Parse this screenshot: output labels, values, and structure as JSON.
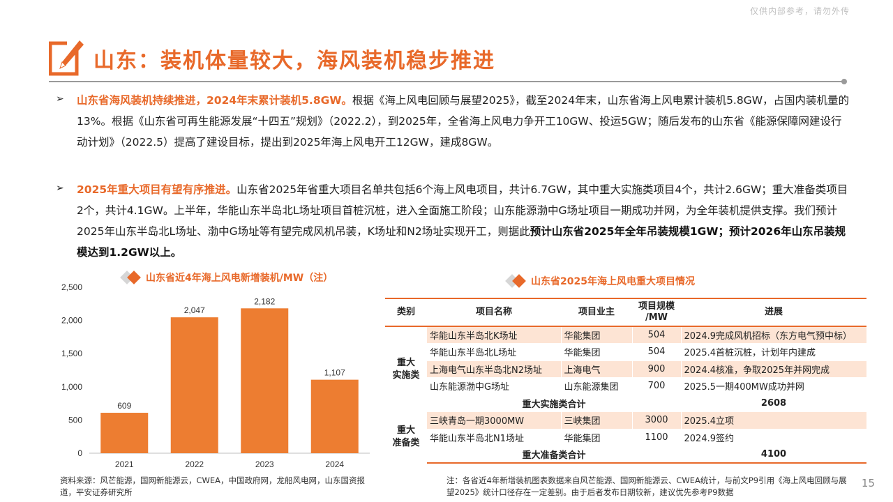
{
  "watermark": "仅供内部参考，请勿外传",
  "title": "山东：装机体量较大，海风装机稳步推进",
  "para1": {
    "lead": "山东省海风装机持续推进，2024年末累计装机5.8GW。",
    "body": "根据《海上风电回顾与展望2025》，截至2024年末，山东省海上风电累计装机5.8GW，占国内装机量的13%。根据《山东省可再生能源发展“十四五”规划》（2022.2），到2025年，全省海上风电力争开工10GW、投运5GW；随后发布的山东省《能源保障网建设行动计划》（2022.5）提高了建设目标，提出到2025年海上风电开工12GW，建成8GW。"
  },
  "para2": {
    "lead": "2025年重大项目有望有序推进。",
    "body": "山东省2025年省重大项目名单共包括6个海上风电项目，共计6.7GW，其中重大实施类项目4个，共计2.6GW；重大准备类项目2个，共计4.1GW。上半年，华能山东半岛北L场址项目首桩沉桩，进入全面施工阶段；山东能源渤中G场址项目一期成功并网，为全年装机提供支撑。我们预计2025年山东半岛北L场址、渤中G场址等有望完成风机吊装，K场址和N2场址实现开工，则据此",
    "tail": "预计山东省2025年全年吊装规模1GW；预计2026年山东吊装规模达到1.2GW以上。"
  },
  "chart_title": "山东省近4年海上风电新增装机/MW（注）",
  "chart_data": {
    "type": "bar",
    "categories": [
      "2021",
      "2022",
      "2023",
      "2024"
    ],
    "values": [
      609,
      2047,
      2182,
      1107
    ],
    "value_labels": [
      "609",
      "2,047",
      "2,182",
      "1,107"
    ],
    "ylim": [
      0,
      2500
    ],
    "yticks": [
      "0",
      "500",
      "1,000",
      "1,500",
      "2,000",
      "2,500"
    ],
    "grid": false,
    "color": "#ED7D31"
  },
  "chart_source": "资料来源：风芒能源，国网新能源云，CWEA，中国政府网，龙船风电网，山东国资报道，平安证券研究所",
  "table_title": "山东省2025年海上风电重大项目情况",
  "table": {
    "headers": [
      "类别",
      "项目名称",
      "项目业主",
      "项目规模/MW",
      "进展"
    ],
    "header_scale_1": "项目规模",
    "header_scale_2": "/MW",
    "group1": {
      "cat_1": "重大",
      "cat_2": "实施类",
      "rows": [
        {
          "name": "华能山东半岛北K场址",
          "owner": "华能集团",
          "scale": "504",
          "progress": "2024.9完成风机招标（东方电气预中标）"
        },
        {
          "name": "华能山东半岛北L场址",
          "owner": "华能集团",
          "scale": "504",
          "progress": "2025.4首桩沉桩，计划年内建成"
        },
        {
          "name": "上海电气山东半岛北N2场址",
          "owner": "上海电气",
          "scale": "900",
          "progress": "2024.4核准，争取2025年并网完成"
        },
        {
          "name": "山东能源渤中G场址",
          "owner": "山东能源集团",
          "scale": "700",
          "progress": "2025.5一期400MW成功并网"
        }
      ],
      "sum_label": "重大实施类合计",
      "sum_value": "2608"
    },
    "group2": {
      "cat_1": "重大",
      "cat_2": "准备类",
      "rows": [
        {
          "name": "三峡青岛一期3000MW",
          "owner": "三峡集团",
          "scale": "3000",
          "progress": "2025.4立项"
        },
        {
          "name": "华能山东半岛北N1场址",
          "owner": "华能集团",
          "scale": "1100",
          "progress": "2024.9签约"
        }
      ],
      "sum_label": "重大准备类合计",
      "sum_value": "4100"
    }
  },
  "note": "注：各省近4年新增装机图表数据来自风芒能源、国网新能源云、CWEA统计，与前文P9引用《海上风电回顾与展望2025》统计口径存在一定差别。由于后者发布日期较新，建议优先参考P9数据",
  "page_number": "15",
  "accent": "#E8692A"
}
